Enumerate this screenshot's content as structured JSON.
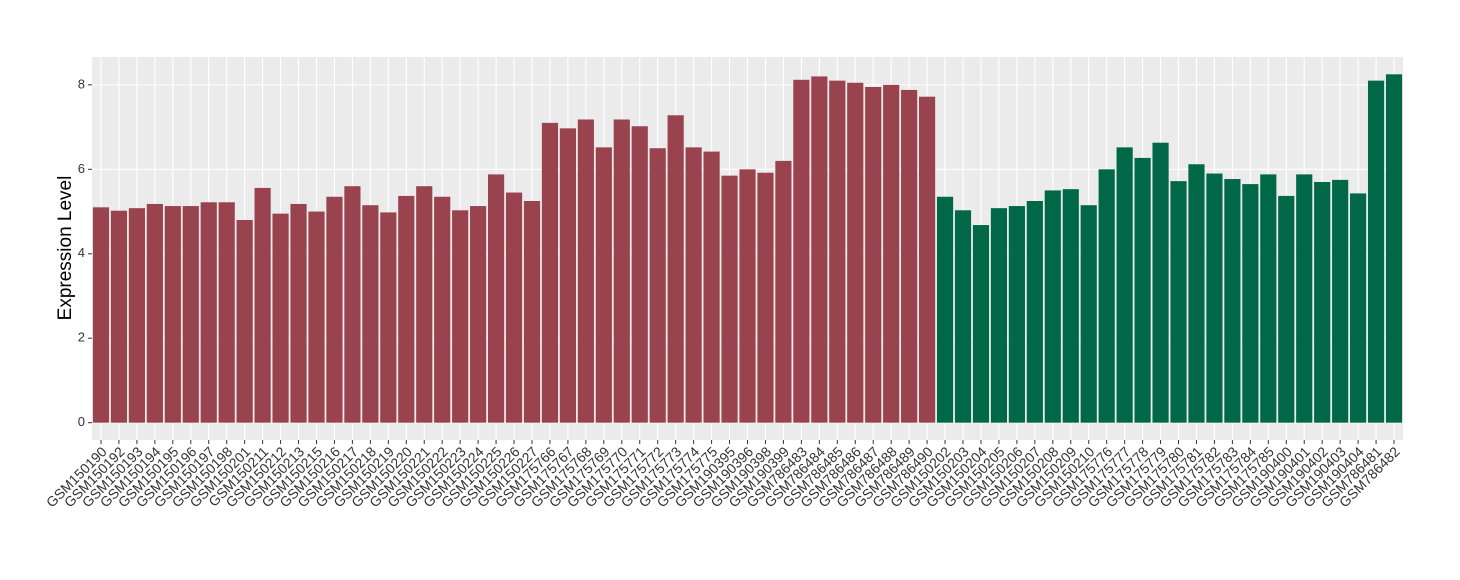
{
  "chart_data": {
    "type": "bar",
    "y_label": "Expression Level",
    "categories": [
      "GSM150190",
      "GSM150192",
      "GSM150193",
      "GSM150194",
      "GSM150195",
      "GSM150196",
      "GSM150197",
      "GSM150198",
      "GSM150201",
      "GSM150211",
      "GSM150212",
      "GSM150213",
      "GSM150215",
      "GSM150216",
      "GSM150217",
      "GSM150218",
      "GSM150219",
      "GSM150220",
      "GSM150221",
      "GSM150222",
      "GSM150223",
      "GSM150224",
      "GSM150225",
      "GSM150226",
      "GSM150227",
      "GSM175766",
      "GSM175767",
      "GSM175768",
      "GSM175769",
      "GSM175770",
      "GSM175771",
      "GSM175772",
      "GSM175773",
      "GSM175774",
      "GSM175775",
      "GSM190395",
      "GSM190396",
      "GSM190398",
      "GSM190399",
      "GSM786483",
      "GSM786484",
      "GSM786485",
      "GSM786486",
      "GSM786487",
      "GSM786488",
      "GSM786489",
      "GSM786490",
      "GSM150202",
      "GSM150203",
      "GSM150204",
      "GSM150205",
      "GSM150206",
      "GSM150207",
      "GSM150208",
      "GSM150209",
      "GSM150210",
      "GSM175776",
      "GSM175777",
      "GSM175778",
      "GSM175779",
      "GSM175780",
      "GSM175781",
      "GSM175782",
      "GSM175783",
      "GSM175784",
      "GSM175785",
      "GSM190400",
      "GSM190401",
      "GSM190402",
      "GSM190403",
      "GSM190404",
      "GSM786481",
      "GSM786482"
    ],
    "series": [
      {
        "color": "#99434f",
        "values": [
          5.1,
          5.02,
          5.08,
          5.18,
          5.13,
          5.13,
          5.22,
          5.22,
          4.8,
          5.56,
          4.95,
          5.18,
          5.0,
          5.35,
          5.6,
          5.15,
          4.98,
          5.37,
          5.6,
          5.35,
          5.03,
          5.13,
          5.88,
          5.45,
          5.25,
          7.1,
          6.97,
          7.18,
          6.52,
          7.18,
          7.02,
          6.5,
          7.28,
          6.52,
          6.42,
          5.85,
          6.0,
          5.92,
          6.2,
          8.12,
          8.2,
          8.1,
          8.05,
          7.95,
          8.0,
          7.88,
          7.72,
          null,
          null,
          null,
          null,
          null,
          null,
          null,
          null,
          null,
          null,
          null,
          null,
          null,
          null,
          null,
          null,
          null,
          null,
          null,
          null,
          null,
          null,
          null,
          null,
          null,
          null
        ]
      },
      {
        "color": "#006747",
        "values": [
          null,
          null,
          null,
          null,
          null,
          null,
          null,
          null,
          null,
          null,
          null,
          null,
          null,
          null,
          null,
          null,
          null,
          null,
          null,
          null,
          null,
          null,
          null,
          null,
          null,
          null,
          null,
          null,
          null,
          null,
          null,
          null,
          null,
          null,
          null,
          null,
          null,
          null,
          null,
          null,
          null,
          null,
          null,
          null,
          null,
          null,
          null,
          5.35,
          5.03,
          4.68,
          5.08,
          5.13,
          5.25,
          5.5,
          5.53,
          5.15,
          6.0,
          6.52,
          6.27,
          6.63,
          5.72,
          6.12,
          5.9,
          5.77,
          5.65,
          5.88,
          5.37,
          5.88,
          5.7,
          5.75,
          5.43,
          8.1,
          8.25
        ]
      }
    ],
    "ylim": [
      -0.41,
      8.66
    ],
    "yticks": [
      0,
      2,
      4,
      6,
      8
    ],
    "grid": true
  }
}
